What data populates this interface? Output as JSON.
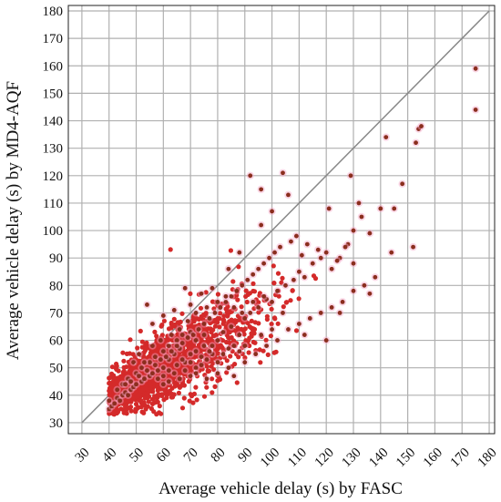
{
  "chart_data": {
    "type": "scatter",
    "xlabel": "Average vehicle delay (s) by FASC",
    "ylabel": "Average vehicle delay (s) by MD4-AQF",
    "xlim": [
      25,
      182
    ],
    "ylim": [
      26,
      182
    ],
    "xticks": [
      "30",
      "40",
      "50",
      "60",
      "70",
      "80",
      "90",
      "100",
      "110",
      "120",
      "130",
      "140",
      "150",
      "160",
      "170",
      "180"
    ],
    "yticks": [
      "30",
      "40",
      "50",
      "60",
      "70",
      "80",
      "90",
      "100",
      "110",
      "120",
      "130",
      "140",
      "150",
      "160",
      "170",
      "180"
    ],
    "grid": true,
    "reference_line": {
      "from": [
        30,
        30
      ],
      "to": [
        180,
        180
      ]
    },
    "colors": {
      "dense": "#d42a2a",
      "sparse": "#8b2e1e",
      "halo": "#f4a6c8",
      "grid": "#b0b0b0",
      "line": "#888888"
    },
    "points": [
      [
        40,
        35
      ],
      [
        41,
        36
      ],
      [
        40,
        38
      ],
      [
        42,
        37
      ],
      [
        43,
        39
      ],
      [
        44,
        38
      ],
      [
        45,
        40
      ],
      [
        46,
        41
      ],
      [
        47,
        40
      ],
      [
        48,
        42
      ],
      [
        49,
        43
      ],
      [
        50,
        44
      ],
      [
        52,
        45
      ],
      [
        53,
        46
      ],
      [
        55,
        47
      ],
      [
        56,
        48
      ],
      [
        58,
        49
      ],
      [
        60,
        50
      ],
      [
        45,
        44
      ],
      [
        47,
        46
      ],
      [
        50,
        48
      ],
      [
        52,
        50
      ],
      [
        55,
        52
      ],
      [
        57,
        54
      ],
      [
        60,
        56
      ],
      [
        62,
        58
      ],
      [
        65,
        60
      ],
      [
        67,
        62
      ],
      [
        70,
        63
      ],
      [
        72,
        60
      ],
      [
        75,
        62
      ],
      [
        78,
        58
      ],
      [
        80,
        60
      ],
      [
        82,
        63
      ],
      [
        85,
        65
      ],
      [
        88,
        62
      ],
      [
        90,
        68
      ],
      [
        92,
        70
      ],
      [
        95,
        72
      ],
      [
        98,
        75
      ],
      [
        100,
        74
      ],
      [
        102,
        78
      ],
      [
        105,
        80
      ],
      [
        108,
        82
      ],
      [
        110,
        85
      ],
      [
        112,
        83
      ],
      [
        115,
        88
      ],
      [
        118,
        90
      ],
      [
        120,
        92
      ],
      [
        122,
        86
      ],
      [
        125,
        90
      ],
      [
        128,
        95
      ],
      [
        130,
        100
      ],
      [
        133,
        105
      ],
      [
        136,
        99
      ],
      [
        140,
        108
      ],
      [
        144,
        92
      ],
      [
        145,
        108
      ],
      [
        148,
        117
      ],
      [
        152,
        94
      ],
      [
        153,
        132
      ],
      [
        154,
        137
      ],
      [
        155,
        138
      ],
      [
        175,
        159
      ],
      [
        175,
        144
      ],
      [
        92,
        120
      ],
      [
        96,
        115
      ],
      [
        100,
        107
      ],
      [
        104,
        121
      ],
      [
        106,
        113
      ],
      [
        96,
        102
      ],
      [
        88,
        92
      ],
      [
        84,
        86
      ],
      [
        78,
        79
      ],
      [
        74,
        77
      ],
      [
        70,
        73
      ],
      [
        68,
        79
      ],
      [
        64,
        71
      ],
      [
        60,
        69
      ],
      [
        56,
        66
      ],
      [
        54,
        73
      ],
      [
        62,
        53
      ],
      [
        64,
        55
      ],
      [
        66,
        57
      ],
      [
        68,
        52
      ],
      [
        70,
        55
      ],
      [
        72,
        50
      ],
      [
        74,
        54
      ],
      [
        76,
        53
      ],
      [
        78,
        55
      ],
      [
        80,
        52
      ],
      [
        82,
        55
      ],
      [
        84,
        57
      ],
      [
        86,
        58
      ],
      [
        88,
        56
      ],
      [
        90,
        52
      ],
      [
        94,
        55
      ],
      [
        98,
        58
      ],
      [
        102,
        60
      ],
      [
        106,
        64
      ],
      [
        110,
        66
      ],
      [
        114,
        68
      ],
      [
        118,
        70
      ],
      [
        122,
        72
      ],
      [
        126,
        74
      ],
      [
        130,
        78
      ],
      [
        134,
        80
      ],
      [
        138,
        83
      ],
      [
        120,
        60
      ],
      [
        125,
        70
      ],
      [
        130,
        88
      ],
      [
        136,
        77
      ],
      [
        112,
        62
      ],
      [
        58,
        46
      ],
      [
        60,
        47
      ],
      [
        62,
        45
      ],
      [
        64,
        48
      ],
      [
        66,
        46
      ],
      [
        68,
        49
      ],
      [
        70,
        47
      ],
      [
        72,
        48
      ],
      [
        74,
        51
      ],
      [
        76,
        46
      ],
      [
        80,
        48
      ],
      [
        84,
        50
      ],
      [
        86,
        47
      ],
      [
        90,
        58
      ],
      [
        96,
        62
      ],
      [
        100,
        64
      ],
      [
        104,
        70
      ],
      [
        43,
        42
      ],
      [
        46,
        44
      ],
      [
        48,
        45
      ],
      [
        51,
        47
      ],
      [
        54,
        49
      ],
      [
        57,
        51
      ],
      [
        59,
        53
      ],
      [
        61,
        54
      ],
      [
        63,
        56
      ],
      [
        65,
        58
      ],
      [
        67,
        59
      ],
      [
        69,
        61
      ],
      [
        71,
        62
      ],
      [
        73,
        64
      ],
      [
        75,
        66
      ],
      [
        77,
        68
      ],
      [
        79,
        70
      ],
      [
        81,
        72
      ],
      [
        83,
        74
      ],
      [
        85,
        76
      ],
      [
        87,
        78
      ],
      [
        89,
        80
      ],
      [
        91,
        82
      ],
      [
        93,
        84
      ],
      [
        95,
        86
      ],
      [
        97,
        88
      ],
      [
        99,
        90
      ],
      [
        101,
        92
      ],
      [
        103,
        94
      ],
      [
        107,
        96
      ],
      [
        109,
        98
      ],
      [
        111,
        91
      ],
      [
        113,
        95
      ],
      [
        117,
        93
      ],
      [
        121,
        108
      ],
      [
        124,
        89
      ],
      [
        127,
        94
      ],
      [
        129,
        120
      ],
      [
        132,
        110
      ],
      [
        142,
        134
      ],
      [
        60,
        44
      ],
      [
        62,
        49
      ],
      [
        65,
        51
      ],
      [
        67,
        53
      ],
      [
        70,
        52
      ],
      [
        72,
        56
      ],
      [
        75,
        58
      ],
      [
        77,
        56
      ],
      [
        53,
        52
      ],
      [
        51,
        55
      ],
      [
        49,
        52
      ],
      [
        56,
        58
      ],
      [
        59,
        60
      ],
      [
        63,
        62
      ],
      [
        66,
        64
      ],
      [
        69,
        67
      ],
      [
        72,
        70
      ],
      [
        76,
        72
      ],
      [
        80,
        74
      ],
      [
        83,
        76
      ],
      [
        86,
        72
      ],
      [
        89,
        70
      ],
      [
        93,
        74
      ],
      [
        97,
        76
      ]
    ],
    "dense_clusters": [
      {
        "cx": 52,
        "cy": 46,
        "rx": 8,
        "ry": 5,
        "n": 380
      },
      {
        "cx": 60,
        "cy": 51,
        "rx": 9,
        "ry": 6,
        "n": 420
      },
      {
        "cx": 68,
        "cy": 55,
        "rx": 10,
        "ry": 7,
        "n": 300
      },
      {
        "cx": 78,
        "cy": 60,
        "rx": 12,
        "ry": 8,
        "n": 180
      },
      {
        "cx": 45,
        "cy": 40,
        "rx": 5,
        "ry": 3,
        "n": 160
      },
      {
        "cx": 90,
        "cy": 66,
        "rx": 12,
        "ry": 9,
        "n": 90
      }
    ]
  }
}
